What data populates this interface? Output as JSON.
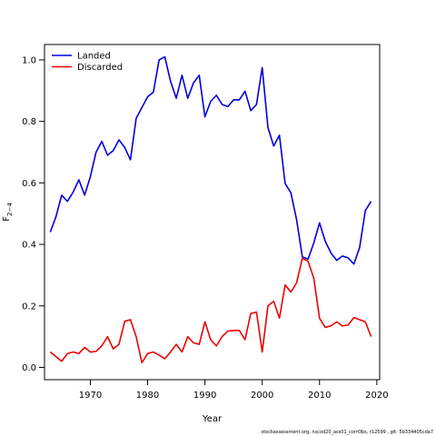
{
  "chart_data": {
    "type": "line",
    "title": "",
    "xlabel": "Year",
    "ylabel": "F",
    "ylabel_sub": "2−4",
    "xlim": [
      1962,
      2020.5
    ],
    "ylim": [
      -0.04,
      1.05
    ],
    "xticks": [
      1970,
      1980,
      1990,
      2000,
      2010,
      2020
    ],
    "yticks": [
      0.0,
      0.2,
      0.4,
      0.6,
      0.8,
      1.0
    ],
    "ytick_labels": [
      "0.0",
      "0.2",
      "0.4",
      "0.6",
      "0.8",
      "1.0"
    ],
    "grid": false,
    "legend_position": "top-left",
    "x": [
      1963,
      1964,
      1965,
      1966,
      1967,
      1968,
      1969,
      1970,
      1971,
      1972,
      1973,
      1974,
      1975,
      1976,
      1977,
      1978,
      1979,
      1980,
      1981,
      1982,
      1983,
      1984,
      1985,
      1986,
      1987,
      1988,
      1989,
      1990,
      1991,
      1992,
      1993,
      1994,
      1995,
      1996,
      1997,
      1998,
      1999,
      2000,
      2001,
      2002,
      2003,
      2004,
      2005,
      2006,
      2007,
      2008,
      2009,
      2010,
      2011,
      2012,
      2013,
      2014,
      2015,
      2016,
      2017,
      2018,
      2019
    ],
    "series": [
      {
        "name": "Landed",
        "color": "#0000dd",
        "values": [
          0.44,
          0.49,
          0.56,
          0.54,
          0.57,
          0.61,
          0.56,
          0.62,
          0.7,
          0.735,
          0.69,
          0.705,
          0.74,
          0.715,
          0.675,
          0.81,
          0.845,
          0.88,
          0.895,
          1.0,
          1.01,
          0.93,
          0.875,
          0.95,
          0.875,
          0.925,
          0.95,
          0.815,
          0.865,
          0.885,
          0.855,
          0.848,
          0.87,
          0.87,
          0.898,
          0.835,
          0.855,
          0.975,
          0.78,
          0.72,
          0.755,
          0.598,
          0.568,
          0.48,
          0.36,
          0.352,
          0.405,
          0.47,
          0.41,
          0.372,
          0.348,
          0.362,
          0.356,
          0.336,
          0.39,
          0.51,
          0.54
        ]
      },
      {
        "name": "Discarded",
        "color": "#ee0000",
        "values": [
          0.05,
          0.035,
          0.02,
          0.045,
          0.05,
          0.045,
          0.065,
          0.05,
          0.052,
          0.07,
          0.1,
          0.06,
          0.075,
          0.15,
          0.155,
          0.1,
          0.015,
          0.045,
          0.05,
          0.04,
          0.028,
          0.05,
          0.075,
          0.05,
          0.1,
          0.08,
          0.075,
          0.148,
          0.09,
          0.07,
          0.1,
          0.118,
          0.12,
          0.12,
          0.09,
          0.175,
          0.18,
          0.05,
          0.2,
          0.215,
          0.16,
          0.268,
          0.245,
          0.275,
          0.355,
          0.345,
          0.29,
          0.16,
          0.13,
          0.135,
          0.148,
          0.135,
          0.138,
          0.162,
          0.155,
          0.148,
          0.1
        ]
      }
    ]
  },
  "footer": {
    "text": "stockassessment.org, nscod20_ass01_corrObs, r12599 , git: 5b334405cda7"
  }
}
